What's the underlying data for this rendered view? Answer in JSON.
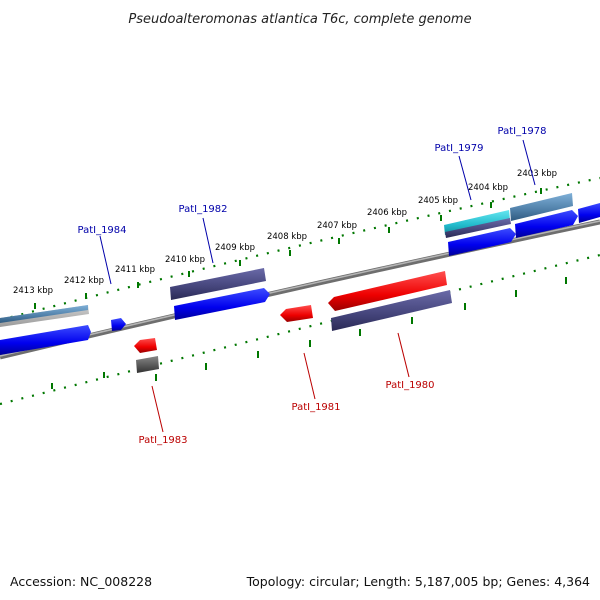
{
  "title": "Pseudoalteromonas atlantica T6c, complete genome",
  "footer": {
    "accession": "Accession: NC_008228",
    "summary": "Topology: circular; Length: 5,187,005 bp; Genes: 4,364"
  },
  "colors": {
    "forward_label": "#0000aa",
    "reverse_label": "#bb0000",
    "forward_gene": "#0000ee",
    "reverse_gene": "#ee0000",
    "slate_gene": "#44447a",
    "steel_gene": "#4f7fa8",
    "cyan_gene": "#22bbcc",
    "gray_gene": "#555555",
    "backbone": "#8a8a8a",
    "tick": "#007700"
  },
  "scale": {
    "labels": [
      "2403 kbp",
      "2404 kbp",
      "2405 kbp",
      "2406 kbp",
      "2407 kbp",
      "2408 kbp",
      "2409 kbp",
      "2410 kbp",
      "2411 kbp",
      "2412 kbp",
      "2413 kbp"
    ]
  },
  "gene_labels": [
    {
      "text": "PatI_1978",
      "strand": "forward"
    },
    {
      "text": "PatI_1979",
      "strand": "forward"
    },
    {
      "text": "PatI_1982",
      "strand": "forward"
    },
    {
      "text": "PatI_1984",
      "strand": "forward"
    },
    {
      "text": "PatI_1980",
      "strand": "reverse"
    },
    {
      "text": "PatI_1981",
      "strand": "reverse"
    },
    {
      "text": "PatI_1983",
      "strand": "reverse"
    }
  ]
}
